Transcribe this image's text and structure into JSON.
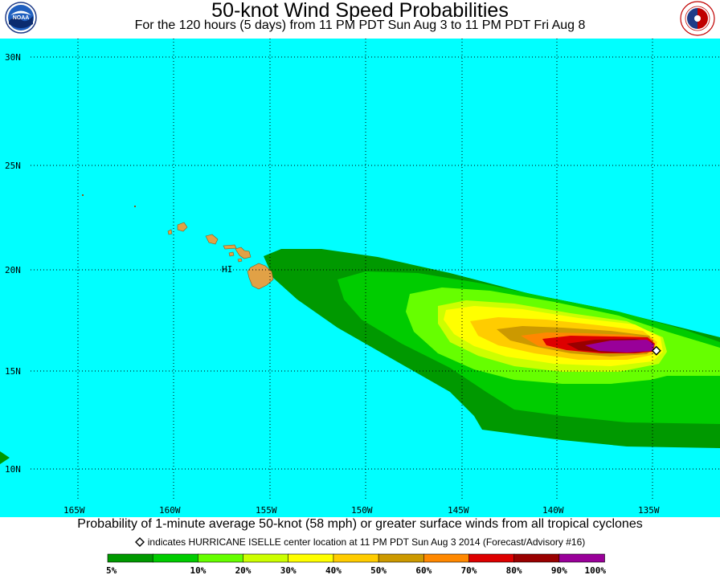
{
  "title": "50-knot Wind Speed Probabilities",
  "subtitle": "For the 120 hours (5 days) from 11 PM PDT Sun Aug 3 to 11 PM PDT Fri Aug 8",
  "logos": {
    "left": {
      "name": "noaa-logo",
      "text": "NOAA"
    },
    "right": {
      "name": "national-weather-service-logo",
      "text": "NATIONAL WEATHER SERVICE"
    }
  },
  "map": {
    "ocean_color": "#00ffff",
    "land_color": "#e1a146",
    "island_label": "HI",
    "lat_labels": [
      "30N",
      "25N",
      "20N",
      "15N",
      "10N"
    ],
    "lon_labels": [
      "165W",
      "160W",
      "155W",
      "150W",
      "145W",
      "140W",
      "135W"
    ],
    "storm": {
      "name": "HURRICANE ISELLE",
      "lat": 16.0,
      "lon": -134.8
    }
  },
  "caption": "Probability of 1-minute average 50-knot (58 mph) or greater surface winds from all tropical cyclones",
  "note": "indicates HURRICANE ISELLE center location at 11 PM PDT Sun Aug 3 2014 (Forecast/Advisory #16)",
  "legend": {
    "labels": [
      "5%",
      "10%",
      "20%",
      "30%",
      "40%",
      "50%",
      "60%",
      "70%",
      "80%",
      "90%",
      "100%"
    ],
    "colors": [
      "#009900",
      "#00cc00",
      "#66ff00",
      "#ccff00",
      "#ffff00",
      "#ffcc00",
      "#cc9900",
      "#ff8800",
      "#dd0000",
      "#990000",
      "#990099"
    ]
  }
}
